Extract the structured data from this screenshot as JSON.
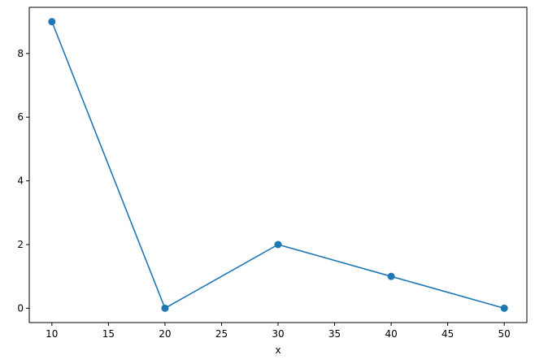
{
  "chart_data": {
    "type": "line",
    "title": "",
    "xlabel": "x",
    "ylabel": "",
    "x": [
      10,
      20,
      30,
      40,
      50
    ],
    "series": [
      {
        "values": [
          9,
          0,
          2,
          1,
          0
        ],
        "color": "#1f77b4",
        "marker": "circle"
      }
    ],
    "xlim": [
      8,
      52
    ],
    "ylim": [
      -0.45,
      9.45
    ],
    "xticks": [
      10,
      15,
      20,
      25,
      30,
      35,
      40,
      45,
      50
    ],
    "yticks": [
      0,
      2,
      4,
      6,
      8
    ],
    "grid": false,
    "legend": "none"
  }
}
